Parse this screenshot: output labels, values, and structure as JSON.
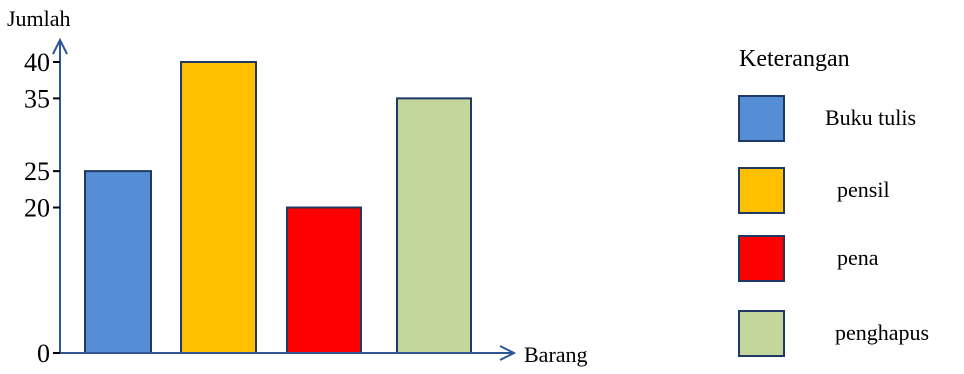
{
  "chart_data": {
    "type": "bar",
    "title": "",
    "xlabel": "Barang",
    "ylabel": "Jumlah",
    "categories": [
      "Buku tulis",
      "pensil",
      "pena",
      "penghapus"
    ],
    "values": [
      25,
      40,
      20,
      35
    ],
    "yticks": [
      0,
      20,
      25,
      35,
      40
    ],
    "ylim": [
      0,
      40
    ],
    "grid": false,
    "legend": {
      "title": "Keterangan",
      "placement": "right",
      "entries": [
        "Buku tulis",
        "pensil",
        "pena",
        "penghapus"
      ]
    },
    "colors": [
      "#558ED5",
      "#FFC000",
      "#FF0000",
      "#C3D69B"
    ],
    "border_color": "#1F3864",
    "axis_color": "#2F5597"
  }
}
